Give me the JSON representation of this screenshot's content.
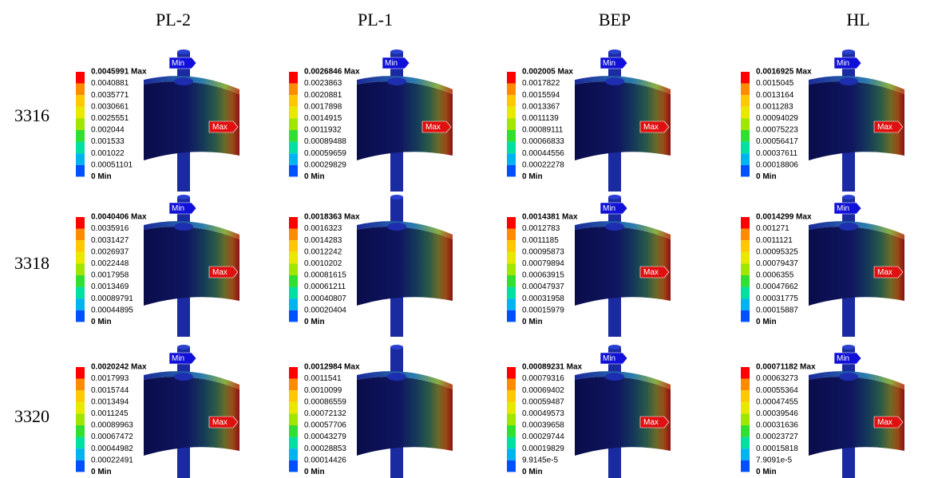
{
  "columns": [
    "PL-2",
    "PL-1",
    "BEP",
    "HL"
  ],
  "rows": [
    {
      "label": "3316",
      "panels": [
        {
          "legend": [
            "0.0045991 Max",
            "0.0040881",
            "0.0035771",
            "0.0030661",
            "0.0025551",
            "0.002044",
            "0.001533",
            "0.001022",
            "0.00051101",
            "0 Min"
          ],
          "min_tag": "Min",
          "max_tag": "Max"
        },
        {
          "legend": [
            "0.0026846 Max",
            "0.0023863",
            "0.0020881",
            "0.0017898",
            "0.0014915",
            "0.0011932",
            "0.00089488",
            "0.00059659",
            "0.00029829",
            "0 Min"
          ],
          "min_tag": "Min",
          "max_tag": "Max"
        },
        {
          "legend": [
            "0.002005 Max",
            "0.0017822",
            "0.0015594",
            "0.0013367",
            "0.0011139",
            "0.00089111",
            "0.00066833",
            "0.00044556",
            "0.00022278",
            "0 Min"
          ],
          "min_tag": "Min",
          "max_tag": "Max"
        },
        {
          "legend": [
            "0.0016925 Max",
            "0.0015045",
            "0.0013164",
            "0.0011283",
            "0.00094029",
            "0.00075223",
            "0.00056417",
            "0.00037611",
            "0.00018806",
            "0 Min"
          ],
          "min_tag": "Min",
          "max_tag": "Max"
        }
      ]
    },
    {
      "label": "3318",
      "panels": [
        {
          "legend": [
            "0.0040406 Max",
            "0.0035916",
            "0.0031427",
            "0.0026937",
            "0.0022448",
            "0.0017958",
            "0.0013469",
            "0.00089791",
            "0.00044895",
            "0 Min"
          ],
          "min_tag": "Min",
          "max_tag": "Max"
        },
        {
          "legend": [
            "0.0018363 Max",
            "0.0016323",
            "0.0014283",
            "0.0012242",
            "0.0010202",
            "0.00081615",
            "0.00061211",
            "0.00040807",
            "0.00020404",
            "0 Min"
          ]
        },
        {
          "legend": [
            "0.0014381 Max",
            "0.0012783",
            "0.0011185",
            "0.00095873",
            "0.00079894",
            "0.00063915",
            "0.00047937",
            "0.00031958",
            "0.00015979",
            "0 Min"
          ],
          "min_tag": "Min",
          "max_tag": "Max"
        },
        {
          "legend": [
            "0.0014299 Max",
            "0.001271",
            "0.0011121",
            "0.00095325",
            "0.00079437",
            "0.0006355",
            "0.00047662",
            "0.00031775",
            "0.00015887",
            "0 Min"
          ],
          "min_tag": "Min",
          "max_tag": "Max"
        }
      ]
    },
    {
      "label": "3320",
      "panels": [
        {
          "legend": [
            "0.0020242 Max",
            "0.0017993",
            "0.0015744",
            "0.0013494",
            "0.0011245",
            "0.00089963",
            "0.00067472",
            "0.00044982",
            "0.00022491",
            "0 Min"
          ],
          "min_tag": "Min",
          "max_tag": "Max"
        },
        {
          "legend": [
            "0.0012984 Max",
            "0.0011541",
            "0.0010099",
            "0.00086559",
            "0.00072132",
            "0.00057706",
            "0.00043279",
            "0.00028853",
            "0.00014426",
            "0 Min"
          ]
        },
        {
          "legend": [
            "0.00089231 Max",
            "0.00079316",
            "0.00069402",
            "0.00059487",
            "0.00049573",
            "0.00039658",
            "0.00029744",
            "0.00019829",
            "9.9145e-5",
            "0 Min"
          ],
          "min_tag": "Min",
          "max_tag": "Max"
        },
        {
          "legend": [
            "0.00071182 Max",
            "0.00063273",
            "0.00055364",
            "0.00047455",
            "0.00039546",
            "0.00031636",
            "0.00023727",
            "0.00015818",
            "7.9091e-5",
            "0 Min"
          ],
          "min_tag": "Min",
          "max_tag": "Max"
        }
      ]
    }
  ]
}
